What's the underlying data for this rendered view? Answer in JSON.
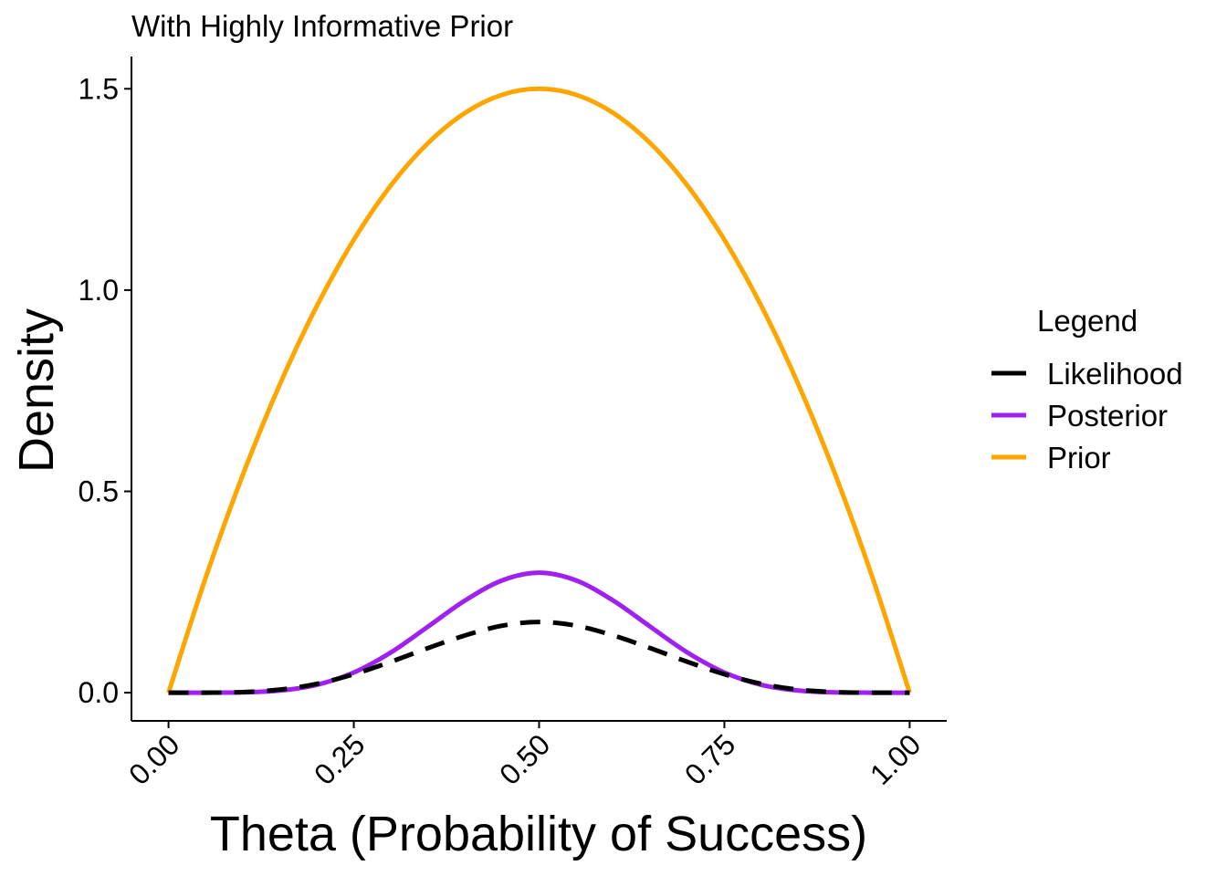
{
  "chart_data": {
    "type": "line",
    "title": "With Highly Informative Prior",
    "xlabel": "Theta (Probability of Success)",
    "ylabel": "Density",
    "xlim": [
      -0.05,
      1.05
    ],
    "ylim": [
      -0.07,
      1.58
    ],
    "x_ticks": [
      0,
      0.25,
      0.5,
      0.75,
      1
    ],
    "x_tick_labels": [
      "0.00",
      "0.25",
      "0.50",
      "0.75",
      "1.00"
    ],
    "y_ticks": [
      0,
      0.5,
      1,
      1.5
    ],
    "y_tick_labels": [
      "0.0",
      "0.5",
      "1.0",
      "1.5"
    ],
    "x": [
      0,
      0.05,
      0.1,
      0.15,
      0.2,
      0.25,
      0.3,
      0.35,
      0.4,
      0.45,
      0.5,
      0.55,
      0.6,
      0.65,
      0.7,
      0.75,
      0.8,
      0.85,
      0.9,
      0.95,
      1
    ],
    "legend": {
      "title": "Legend",
      "position": "right"
    },
    "grid": false,
    "series": [
      {
        "name": "Likelihood",
        "color": "#000000",
        "dash": "dashed",
        "values": [
          0,
          0.0001,
          0.0015,
          0.0076,
          0.022,
          0.0458,
          0.0768,
          0.1107,
          0.1422,
          0.1664,
          0.1757,
          0.1664,
          0.1422,
          0.1107,
          0.0768,
          0.0458,
          0.022,
          0.0076,
          0.0015,
          0.0001,
          0
        ]
      },
      {
        "name": "Posterior",
        "color": "#A020F0",
        "dash": "solid",
        "values": [
          0,
          0.0001,
          0.0008,
          0.0053,
          0.0195,
          0.0501,
          0.1,
          0.164,
          0.2289,
          0.2788,
          0.2979,
          0.2788,
          0.2289,
          0.164,
          0.1,
          0.0501,
          0.0195,
          0.0053,
          0.0008,
          0.0001,
          0
        ]
      },
      {
        "name": "Prior",
        "color": "#FFA500",
        "dash": "solid",
        "values": [
          0,
          0.285,
          0.54,
          0.765,
          0.96,
          1.125,
          1.26,
          1.365,
          1.44,
          1.485,
          1.5,
          1.485,
          1.44,
          1.365,
          1.26,
          1.125,
          0.96,
          0.765,
          0.54,
          0.285,
          0
        ]
      }
    ]
  }
}
